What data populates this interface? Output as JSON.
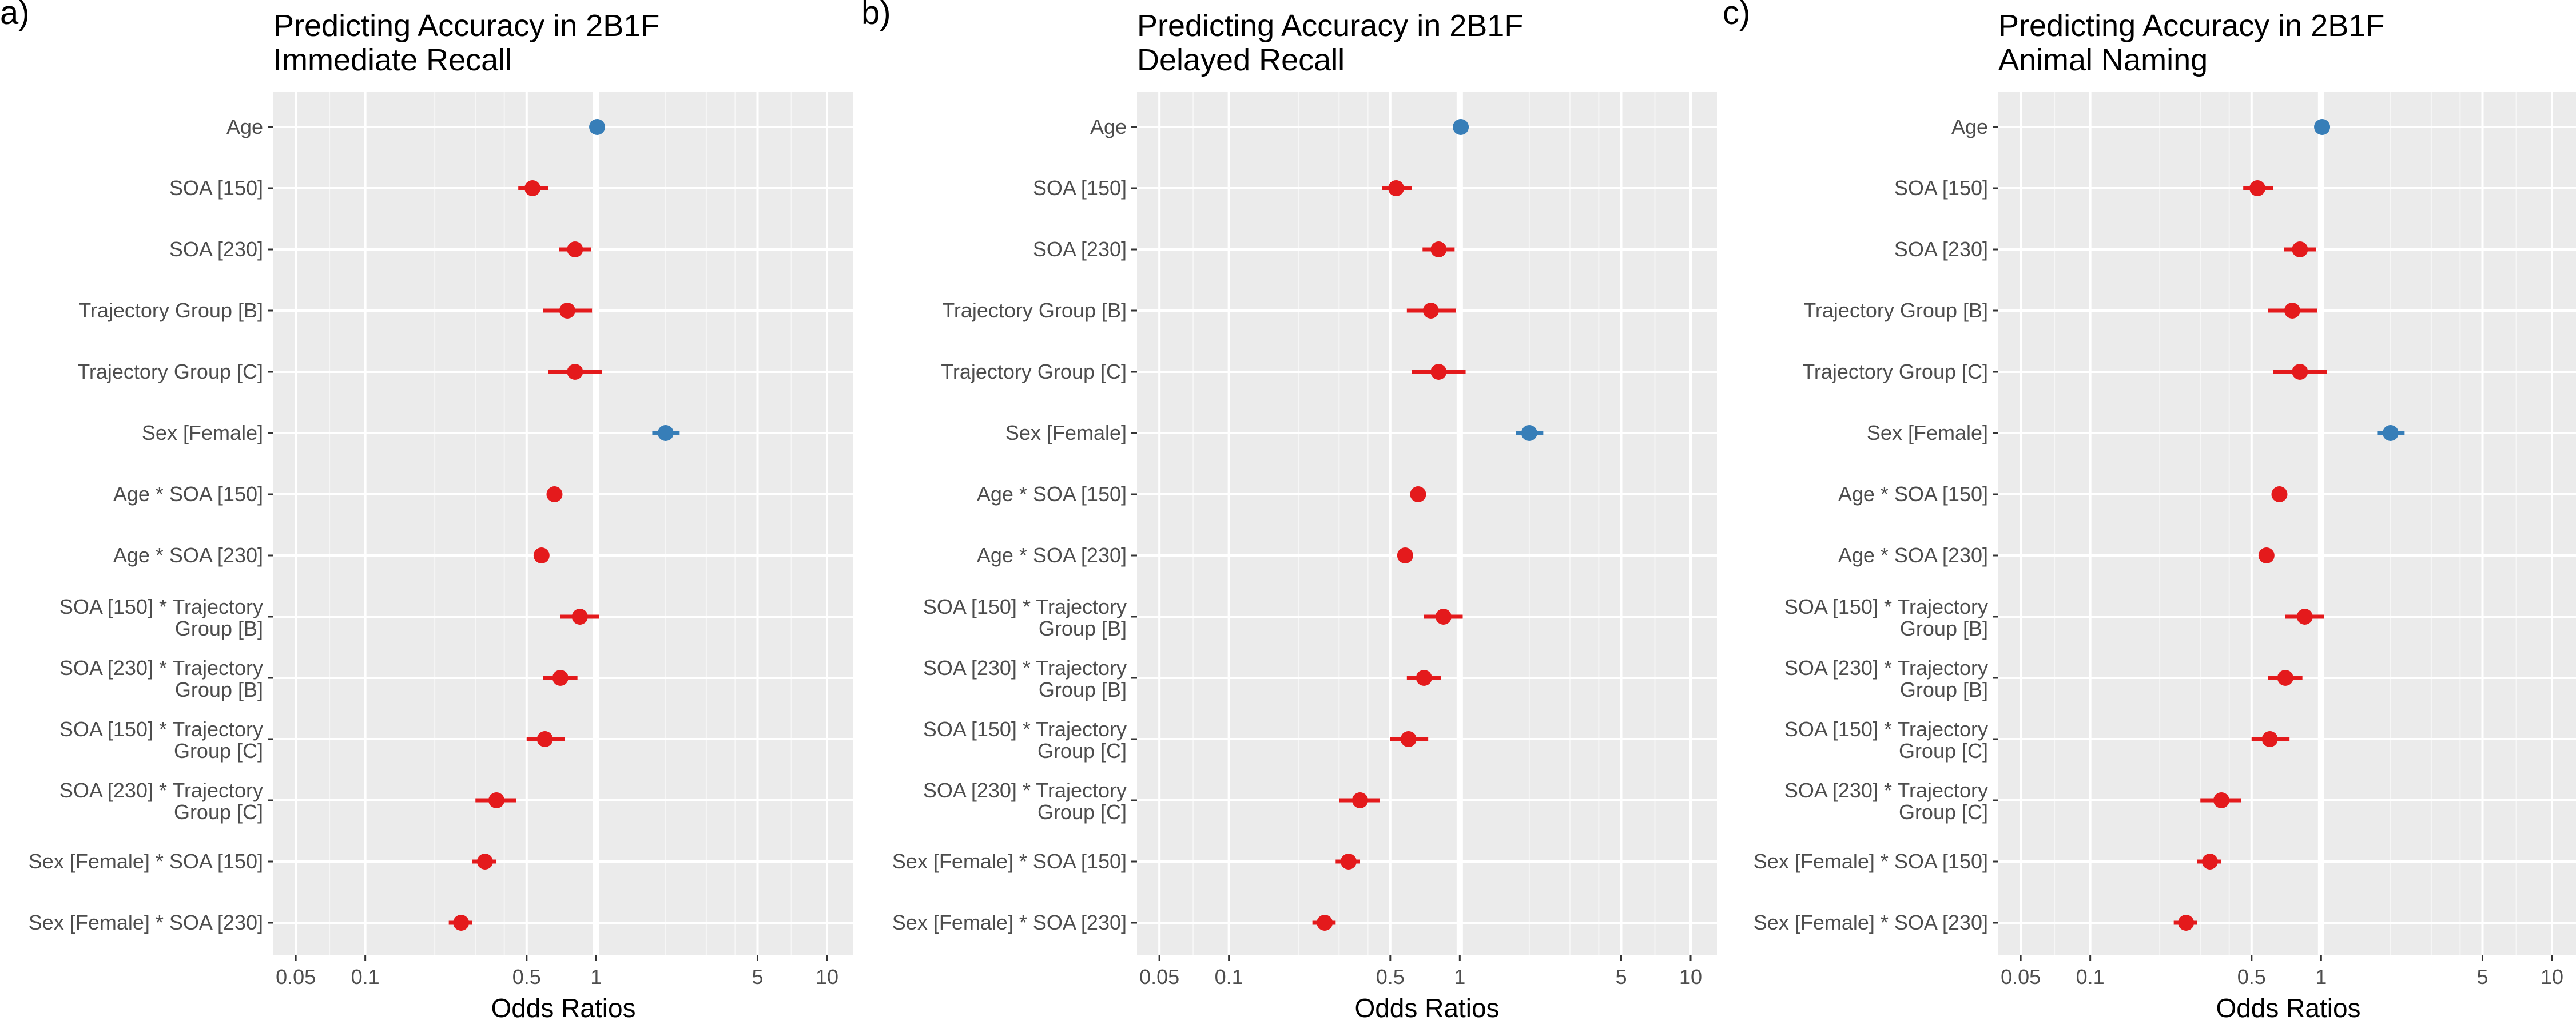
{
  "colors": {
    "negative": "#e41a1c",
    "positive": "#377eb8",
    "panel_background": "#ebebeb",
    "grid_major": "#ffffff",
    "reference_line": "#ffffff"
  },
  "chart_data": [
    {
      "type": "forest",
      "panel_label": "a)",
      "title": [
        "Predicting Accuracy in 2B1F",
        "Immediate Recall"
      ],
      "xlabel": "Odds Ratios",
      "xscale": "log10",
      "xlim": [
        0.04,
        13
      ],
      "xticks": [
        0.05,
        0.1,
        0.5,
        1,
        5,
        10
      ],
      "xtick_labels": [
        "0.05",
        "0.1",
        "0.5",
        "1",
        "5",
        "10"
      ],
      "reference_value": 1,
      "terms": [
        {
          "label": [
            "Age"
          ],
          "estimate": 1.01,
          "ci": [
            0.97,
            1.05
          ]
        },
        {
          "label": [
            "SOA [150]"
          ],
          "estimate": 0.53,
          "ci": [
            0.46,
            0.62
          ]
        },
        {
          "label": [
            "SOA [230]"
          ],
          "estimate": 0.81,
          "ci": [
            0.69,
            0.95
          ]
        },
        {
          "label": [
            "Trajectory Group [B]"
          ],
          "estimate": 0.75,
          "ci": [
            0.59,
            0.96
          ]
        },
        {
          "label": [
            "Trajectory Group [C]"
          ],
          "estimate": 0.81,
          "ci": [
            0.62,
            1.06
          ]
        },
        {
          "label": [
            "Sex [Female]"
          ],
          "estimate": 2.0,
          "ci": [
            1.75,
            2.3
          ]
        },
        {
          "label": [
            "Age * SOA [150]"
          ],
          "estimate": 0.66,
          "ci": [
            0.64,
            0.69
          ]
        },
        {
          "label": [
            "Age * SOA [230]"
          ],
          "estimate": 0.58,
          "ci": [
            0.56,
            0.61
          ]
        },
        {
          "label": [
            "SOA [150] *  Trajectory",
            "Group [B]"
          ],
          "estimate": 0.85,
          "ci": [
            0.7,
            1.03
          ]
        },
        {
          "label": [
            "SOA [230] *  Trajectory",
            "Group [B]"
          ],
          "estimate": 0.7,
          "ci": [
            0.59,
            0.83
          ]
        },
        {
          "label": [
            "SOA [150] *  Trajectory",
            "Group [C]"
          ],
          "estimate": 0.6,
          "ci": [
            0.5,
            0.73
          ]
        },
        {
          "label": [
            "SOA [230] *  Trajectory",
            "Group [C]"
          ],
          "estimate": 0.37,
          "ci": [
            0.3,
            0.45
          ]
        },
        {
          "label": [
            "Sex [Female] * SOA [150]"
          ],
          "estimate": 0.33,
          "ci": [
            0.29,
            0.37
          ]
        },
        {
          "label": [
            "Sex [Female] * SOA [230]"
          ],
          "estimate": 0.26,
          "ci": [
            0.23,
            0.29
          ]
        }
      ]
    },
    {
      "type": "forest",
      "panel_label": "b)",
      "title": [
        "Predicting Accuracy in 2B1F",
        "Delayed Recall"
      ],
      "xlabel": "Odds Ratios",
      "xscale": "log10",
      "xlim": [
        0.04,
        13
      ],
      "xticks": [
        0.05,
        0.1,
        0.5,
        1,
        5,
        10
      ],
      "xtick_labels": [
        "0.05",
        "0.1",
        "0.5",
        "1",
        "5",
        "10"
      ],
      "reference_value": 1,
      "terms": [
        {
          "label": [
            "Age"
          ],
          "estimate": 1.01,
          "ci": [
            0.97,
            1.05
          ]
        },
        {
          "label": [
            "SOA [150]"
          ],
          "estimate": 0.53,
          "ci": [
            0.46,
            0.62
          ]
        },
        {
          "label": [
            "SOA [230]"
          ],
          "estimate": 0.81,
          "ci": [
            0.69,
            0.95
          ]
        },
        {
          "label": [
            "Trajectory Group [B]"
          ],
          "estimate": 0.75,
          "ci": [
            0.59,
            0.96
          ]
        },
        {
          "label": [
            "Trajectory Group [C]"
          ],
          "estimate": 0.81,
          "ci": [
            0.62,
            1.06
          ]
        },
        {
          "label": [
            "Sex [Female]"
          ],
          "estimate": 2.0,
          "ci": [
            1.75,
            2.3
          ]
        },
        {
          "label": [
            "Age * SOA [150]"
          ],
          "estimate": 0.66,
          "ci": [
            0.64,
            0.69
          ]
        },
        {
          "label": [
            "Age * SOA [230]"
          ],
          "estimate": 0.58,
          "ci": [
            0.56,
            0.61
          ]
        },
        {
          "label": [
            "SOA [150] *  Trajectory",
            "Group [B]"
          ],
          "estimate": 0.85,
          "ci": [
            0.7,
            1.03
          ]
        },
        {
          "label": [
            "SOA [230] *  Trajectory",
            "Group [B]"
          ],
          "estimate": 0.7,
          "ci": [
            0.59,
            0.83
          ]
        },
        {
          "label": [
            "SOA [150] *  Trajectory",
            "Group [C]"
          ],
          "estimate": 0.6,
          "ci": [
            0.5,
            0.73
          ]
        },
        {
          "label": [
            "SOA [230] *  Trajectory",
            "Group [C]"
          ],
          "estimate": 0.37,
          "ci": [
            0.3,
            0.45
          ]
        },
        {
          "label": [
            "Sex [Female] * SOA [150]"
          ],
          "estimate": 0.33,
          "ci": [
            0.29,
            0.37
          ]
        },
        {
          "label": [
            "Sex [Female] * SOA [230]"
          ],
          "estimate": 0.26,
          "ci": [
            0.23,
            0.29
          ]
        }
      ]
    },
    {
      "type": "forest",
      "panel_label": "c)",
      "title": [
        "Predicting Accuracy in 2B1F",
        "Animal Naming"
      ],
      "xlabel": "Odds Ratios",
      "xscale": "log10",
      "xlim": [
        0.04,
        13
      ],
      "xticks": [
        0.05,
        0.1,
        0.5,
        1,
        5,
        10
      ],
      "xtick_labels": [
        "0.05",
        "0.1",
        "0.5",
        "1",
        "5",
        "10"
      ],
      "reference_value": 1,
      "terms": [
        {
          "label": [
            "Age"
          ],
          "estimate": 1.01,
          "ci": [
            0.97,
            1.05
          ]
        },
        {
          "label": [
            "SOA [150]"
          ],
          "estimate": 0.53,
          "ci": [
            0.46,
            0.62
          ]
        },
        {
          "label": [
            "SOA [230]"
          ],
          "estimate": 0.81,
          "ci": [
            0.69,
            0.95
          ]
        },
        {
          "label": [
            "Trajectory Group [B]"
          ],
          "estimate": 0.75,
          "ci": [
            0.59,
            0.96
          ]
        },
        {
          "label": [
            "Trajectory Group [C]"
          ],
          "estimate": 0.81,
          "ci": [
            0.62,
            1.06
          ]
        },
        {
          "label": [
            "Sex [Female]"
          ],
          "estimate": 2.0,
          "ci": [
            1.75,
            2.3
          ]
        },
        {
          "label": [
            "Age * SOA [150]"
          ],
          "estimate": 0.66,
          "ci": [
            0.64,
            0.69
          ]
        },
        {
          "label": [
            "Age * SOA [230]"
          ],
          "estimate": 0.58,
          "ci": [
            0.56,
            0.61
          ]
        },
        {
          "label": [
            "SOA [150] *  Trajectory",
            "Group [B]"
          ],
          "estimate": 0.85,
          "ci": [
            0.7,
            1.03
          ]
        },
        {
          "label": [
            "SOA [230] *  Trajectory",
            "Group [B]"
          ],
          "estimate": 0.7,
          "ci": [
            0.59,
            0.83
          ]
        },
        {
          "label": [
            "SOA [150] *  Trajectory",
            "Group [C]"
          ],
          "estimate": 0.6,
          "ci": [
            0.5,
            0.73
          ]
        },
        {
          "label": [
            "SOA [230] *  Trajectory",
            "Group [C]"
          ],
          "estimate": 0.37,
          "ci": [
            0.3,
            0.45
          ]
        },
        {
          "label": [
            "Sex [Female] * SOA [150]"
          ],
          "estimate": 0.33,
          "ci": [
            0.29,
            0.37
          ]
        },
        {
          "label": [
            "Sex [Female] * SOA [230]"
          ],
          "estimate": 0.26,
          "ci": [
            0.23,
            0.29
          ]
        }
      ]
    }
  ]
}
